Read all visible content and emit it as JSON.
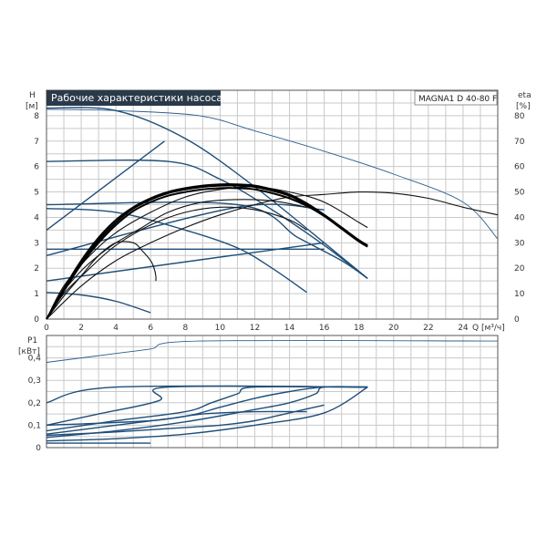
{
  "chart_data": [
    {
      "type": "line",
      "title": "Рабочие характеристики насоса",
      "model": "MAGNA1 D 40-80 F",
      "ylabel_left": "H",
      "ylabel_left_unit": "[м]",
      "ylabel_right": "eta",
      "ylabel_right_unit": "[%]",
      "xlabel": "Q [м³/ч]",
      "xlim": [
        0,
        26
      ],
      "ylim": [
        0,
        9
      ],
      "ylim_right": [
        0,
        90
      ],
      "x_ticks": [
        0,
        2,
        4,
        6,
        8,
        10,
        12,
        14,
        16,
        18,
        20,
        22,
        24
      ],
      "y_ticks": [
        0,
        1,
        2,
        3,
        4,
        5,
        6,
        7,
        8
      ],
      "y_ticks_right": [
        0,
        10,
        20,
        30,
        40,
        50,
        60,
        70,
        80
      ],
      "grid": true,
      "series": [
        {
          "style": "blue-thin",
          "axis": "left",
          "points": [
            [
              0,
              8.25
            ],
            [
              4,
              8.2
            ],
            [
              8.8,
              8.0
            ],
            [
              12,
              7.4
            ],
            [
              16,
              6.6
            ],
            [
              20,
              5.7
            ],
            [
              24,
              4.6
            ],
            [
              26,
              3.15
            ]
          ]
        },
        {
          "style": "blue",
          "axis": "left",
          "points": [
            [
              0,
              8.3
            ],
            [
              4,
              8.2
            ],
            [
              8,
              7.1
            ],
            [
              12,
              5.2
            ],
            [
              16,
              3.0
            ],
            [
              18.5,
              1.6
            ]
          ]
        },
        {
          "style": "blue",
          "axis": "left",
          "points": [
            [
              0,
              6.2
            ],
            [
              7,
              6.2
            ],
            [
              10,
              5.5
            ],
            [
              13,
              4.3
            ],
            [
              16,
              2.9
            ],
            [
              18.5,
              1.6
            ]
          ]
        },
        {
          "style": "blue",
          "axis": "left",
          "points": [
            [
              0,
              4.5
            ],
            [
              11,
              4.5
            ],
            [
              14.5,
              3.2
            ],
            [
              17,
              2.3
            ],
            [
              18.5,
              1.6
            ]
          ]
        },
        {
          "style": "blue",
          "axis": "left",
          "points": [
            [
              0,
              4.35
            ],
            [
              4,
              4.2
            ],
            [
              8,
              3.5
            ],
            [
              11,
              2.8
            ],
            [
              13,
              2.0
            ],
            [
              15,
              1.05
            ]
          ]
        },
        {
          "style": "blue",
          "axis": "left",
          "points": [
            [
              0,
              2.75
            ],
            [
              16,
              2.75
            ]
          ]
        },
        {
          "style": "blue",
          "axis": "left",
          "points": [
            [
              0,
              1.05
            ],
            [
              2,
              0.95
            ],
            [
              4,
              0.7
            ],
            [
              6,
              0.25
            ]
          ]
        },
        {
          "style": "blue",
          "axis": "left",
          "points": [
            [
              0,
              3.5
            ],
            [
              6.8,
              7.0
            ]
          ]
        },
        {
          "style": "blue",
          "axis": "left",
          "points": [
            [
              0,
              2.5
            ],
            [
              11,
              4.4
            ],
            [
              16,
              4.3
            ]
          ]
        },
        {
          "style": "blue",
          "axis": "left",
          "points": [
            [
              0,
              1.5
            ],
            [
              16,
              3.0
            ]
          ]
        },
        {
          "style": "black",
          "axis": "right",
          "points": [
            [
              0,
              0
            ],
            [
              2,
              13
            ],
            [
              4,
              23
            ],
            [
              6,
              30
            ],
            [
              8,
              36
            ],
            [
              10,
              41
            ],
            [
              12,
              45
            ],
            [
              14,
              48
            ],
            [
              16,
              49
            ],
            [
              18,
              50
            ],
            [
              20,
              49.5
            ],
            [
              22,
              47.5
            ],
            [
              24,
              44
            ],
            [
              26,
              41
            ]
          ]
        },
        {
          "style": "black",
          "axis": "right",
          "points": [
            [
              0,
              0
            ],
            [
              1,
              10
            ],
            [
              2.5,
              20
            ],
            [
              4,
              29
            ],
            [
              6,
              37
            ],
            [
              8,
              42
            ],
            [
              10,
              44
            ],
            [
              12,
              43
            ],
            [
              14,
              39
            ],
            [
              15,
              35
            ]
          ]
        },
        {
          "style": "black",
          "axis": "right",
          "points": [
            [
              0,
              0
            ],
            [
              1,
              13
            ],
            [
              2.5,
              25
            ],
            [
              4,
              34
            ],
            [
              6,
              42
            ],
            [
              8,
              48
            ],
            [
              10,
              51
            ],
            [
              12,
              52
            ],
            [
              14,
              50
            ],
            [
              16,
              46
            ],
            [
              18,
              38
            ],
            [
              18.5,
              36
            ]
          ]
        },
        {
          "style": "black",
          "axis": "right",
          "points": [
            [
              0,
              0
            ],
            [
              1,
              11
            ],
            [
              2,
              19
            ],
            [
              3,
              25
            ],
            [
              4,
              30
            ],
            [
              5.5,
              36
            ],
            [
              7,
              42
            ],
            [
              9,
              46
            ],
            [
              11,
              47
            ],
            [
              13,
              46.5
            ],
            [
              15,
              44
            ]
          ]
        },
        {
          "style": "black",
          "axis": "right",
          "points": [
            [
              0,
              0
            ],
            [
              1,
              9
            ],
            [
              2,
              17
            ],
            [
              3,
              25
            ],
            [
              4,
              30
            ],
            [
              5,
              30
            ],
            [
              5.5,
              27
            ],
            [
              6,
              23
            ],
            [
              6.2,
              20
            ],
            [
              6.3,
              17
            ],
            [
              6.3,
              15
            ]
          ]
        },
        {
          "style": "black-thick",
          "axis": "left",
          "points": [
            [
              0,
              0
            ],
            [
              1,
              1.2
            ],
            [
              2,
              2.3
            ],
            [
              3,
              3.2
            ],
            [
              4,
              3.9
            ],
            [
              5,
              4.4
            ],
            [
              6,
              4.75
            ],
            [
              7,
              5.0
            ],
            [
              8,
              5.15
            ],
            [
              9,
              5.25
            ],
            [
              10,
              5.3
            ],
            [
              11,
              5.3
            ],
            [
              12,
              5.25
            ],
            [
              13,
              5.1
            ],
            [
              14,
              4.9
            ],
            [
              15,
              4.55
            ],
            [
              16,
              4.1
            ],
            [
              17,
              3.6
            ],
            [
              18,
              3.1
            ],
            [
              18.5,
              2.85
            ]
          ]
        },
        {
          "style": "black-thick",
          "axis": "left",
          "points": [
            [
              0,
              0
            ],
            [
              1,
              1.1
            ],
            [
              2,
              2.15
            ],
            [
              3,
              3.0
            ],
            [
              4,
              3.7
            ],
            [
              5,
              4.25
            ],
            [
              6,
              4.6
            ],
            [
              7,
              4.85
            ],
            [
              8,
              5.0
            ],
            [
              9,
              5.1
            ],
            [
              10,
              5.15
            ],
            [
              11,
              5.15
            ],
            [
              12,
              5.1
            ],
            [
              13,
              4.95
            ],
            [
              14,
              4.75
            ],
            [
              15,
              4.45
            ],
            [
              16,
              4.05
            ],
            [
              17,
              3.55
            ],
            [
              18,
              3.05
            ],
            [
              18.5,
              2.85
            ]
          ]
        },
        {
          "style": "black-thick",
          "axis": "left",
          "points": [
            [
              0,
              0
            ],
            [
              1,
              1.15
            ],
            [
              2,
              2.2
            ],
            [
              3,
              3.1
            ],
            [
              4,
              3.8
            ],
            [
              5,
              4.35
            ],
            [
              6,
              4.7
            ],
            [
              7,
              4.95
            ],
            [
              8,
              5.1
            ],
            [
              9,
              5.2
            ],
            [
              10,
              5.25
            ],
            [
              11,
              5.25
            ],
            [
              12,
              5.2
            ],
            [
              13,
              5.05
            ],
            [
              14,
              4.85
            ],
            [
              15,
              4.5
            ],
            [
              16,
              4.1
            ],
            [
              17,
              3.6
            ],
            [
              18,
              3.1
            ],
            [
              18.5,
              2.9
            ]
          ]
        }
      ]
    },
    {
      "type": "line",
      "ylabel": "P1",
      "ylabel_unit": "[кВт]",
      "xlim": [
        0,
        26
      ],
      "ylim": [
        0,
        0.5
      ],
      "y_ticks": [
        "0",
        "0,1",
        "0,2",
        "0,3",
        "0,4"
      ],
      "y_ticks_values": [
        0,
        0.1,
        0.2,
        0.3,
        0.4
      ],
      "grid": true,
      "series": [
        {
          "style": "blue-thin",
          "points": [
            [
              0,
              0.38
            ],
            [
              4,
              0.42
            ],
            [
              6,
              0.44
            ],
            [
              8.8,
              0.475
            ],
            [
              26,
              0.475
            ]
          ]
        },
        {
          "style": "blue",
          "points": [
            [
              0,
              0.2
            ],
            [
              4,
              0.27
            ],
            [
              18.5,
              0.27
            ]
          ]
        },
        {
          "style": "blue",
          "points": [
            [
              0,
              0.1
            ],
            [
              3,
              0.15
            ],
            [
              6.5,
              0.21
            ],
            [
              7,
              0.27
            ],
            [
              18.5,
              0.27
            ]
          ]
        },
        {
          "style": "blue",
          "points": [
            [
              0,
              0.075
            ],
            [
              4,
              0.12
            ],
            [
              8,
              0.16
            ],
            [
              9.5,
              0.2
            ],
            [
              11,
              0.24
            ],
            [
              12,
              0.27
            ],
            [
              18.5,
              0.27
            ]
          ]
        },
        {
          "style": "blue",
          "points": [
            [
              0,
              0.06
            ],
            [
              4,
              0.1
            ],
            [
              8,
              0.14
            ],
            [
              10,
              0.18
            ],
            [
              12,
              0.22
            ],
            [
              14,
              0.25
            ],
            [
              16,
              0.27
            ],
            [
              18.5,
              0.27
            ]
          ]
        },
        {
          "style": "blue",
          "points": [
            [
              0,
              0.045
            ],
            [
              4,
              0.075
            ],
            [
              8,
              0.115
            ],
            [
              12,
              0.17
            ],
            [
              14,
              0.2
            ],
            [
              15.5,
              0.24
            ],
            [
              16,
              0.27
            ],
            [
              18.5,
              0.27
            ]
          ]
        },
        {
          "style": "blue",
          "points": [
            [
              0,
              0.1
            ],
            [
              6,
              0.12
            ],
            [
              9,
              0.15
            ],
            [
              12,
              0.16
            ],
            [
              15,
              0.16
            ]
          ]
        },
        {
          "style": "blue",
          "points": [
            [
              0,
              0.055
            ],
            [
              4,
              0.07
            ],
            [
              8,
              0.09
            ],
            [
              10,
              0.1
            ],
            [
              12,
              0.12
            ],
            [
              14,
              0.155
            ],
            [
              16,
              0.19
            ]
          ]
        },
        {
          "style": "blue",
          "points": [
            [
              0,
              0.03
            ],
            [
              4,
              0.04
            ],
            [
              8,
              0.06
            ],
            [
              12,
              0.1
            ],
            [
              16,
              0.155
            ],
            [
              18.5,
              0.27
            ]
          ]
        },
        {
          "style": "blue",
          "points": [
            [
              0,
              0.02
            ],
            [
              3,
              0.02
            ],
            [
              6,
              0.02
            ]
          ]
        }
      ]
    }
  ]
}
